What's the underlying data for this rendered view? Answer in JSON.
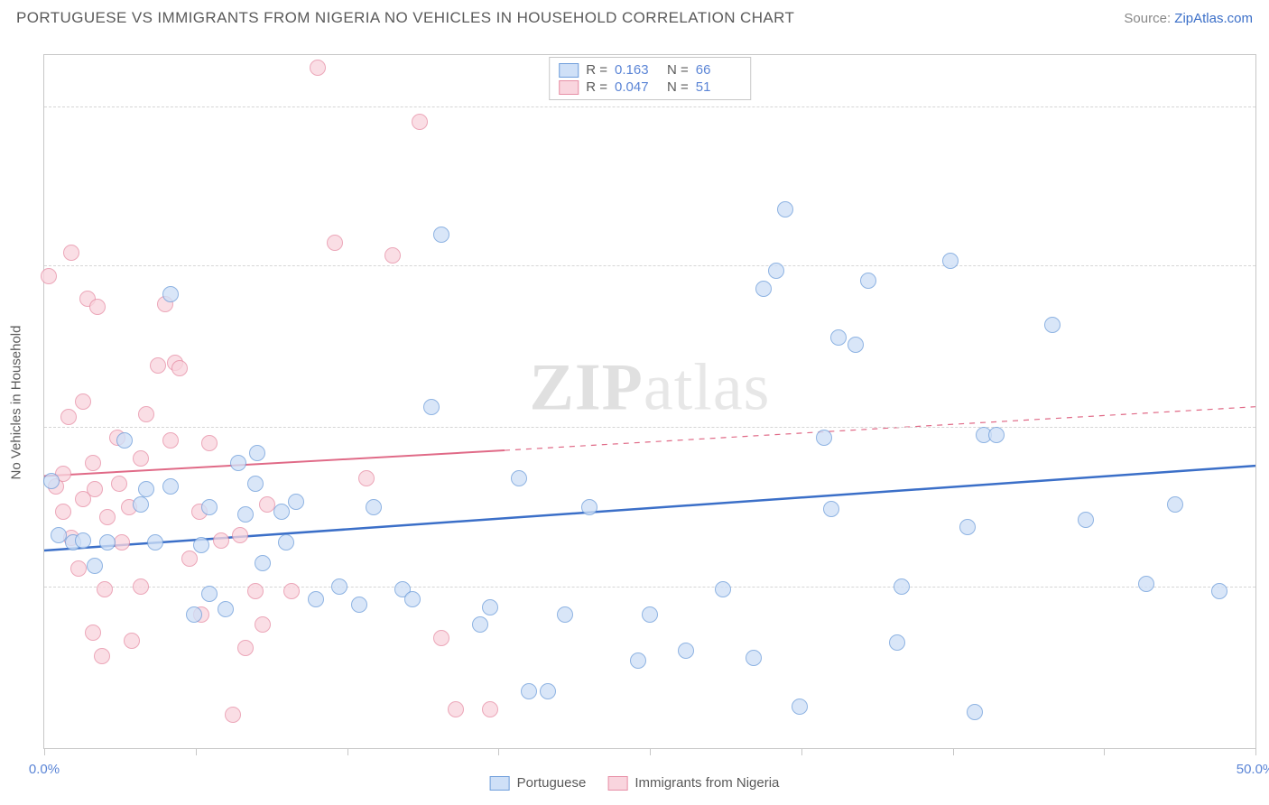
{
  "header": {
    "title": "PORTUGUESE VS IMMIGRANTS FROM NIGERIA NO VEHICLES IN HOUSEHOLD CORRELATION CHART",
    "source_prefix": "Source: ",
    "source_link": "ZipAtlas.com"
  },
  "chart": {
    "type": "scatter",
    "xlim": [
      0,
      50
    ],
    "ylim": [
      0,
      27
    ],
    "x_ticks": [
      0,
      6.25,
      12.5,
      18.75,
      25,
      31.25,
      37.5,
      43.75,
      50
    ],
    "x_tick_labels": {
      "0": "0.0%",
      "50": "50.0%"
    },
    "y_ticks": [
      6.3,
      12.5,
      18.8,
      25.0
    ],
    "y_tick_format": "%",
    "y_axis_label": "No Vehicles in Household",
    "grid_color": "#d6d6d6",
    "background_color": "#ffffff",
    "border_color": "#c7c7c7",
    "label_fontsize": 15,
    "label_color": "#5b85d6",
    "watermark_text_a": "ZIP",
    "watermark_text_b": "atlas"
  },
  "legend_top": {
    "rows": [
      {
        "color_fill": "#cfe0f7",
        "color_border": "#6f9edb",
        "r_label": "R =",
        "r_value": "0.163",
        "n_label": "N =",
        "n_value": "66"
      },
      {
        "color_fill": "#f9d5de",
        "color_border": "#e78fa6",
        "r_label": "R =",
        "r_value": "0.047",
        "n_label": "N =",
        "n_value": "51"
      }
    ]
  },
  "legend_bottom": {
    "items": [
      {
        "label": "Portuguese",
        "fill": "#cfe0f7",
        "border": "#6f9edb"
      },
      {
        "label": "Immigrants from Nigeria",
        "fill": "#f9d5de",
        "border": "#e78fa6"
      }
    ]
  },
  "series": {
    "portuguese": {
      "point_fill": "#cfe0f7",
      "point_border": "#6f9edb",
      "point_opacity": 0.78,
      "point_radius": 9,
      "trend": {
        "x1": 0,
        "y1": 7.7,
        "x2": 50,
        "y2": 11.0,
        "color": "#3b6fc8",
        "width": 2.5,
        "dash_after_x": 50
      },
      "points": [
        [
          0.3,
          10.4
        ],
        [
          0.6,
          8.3
        ],
        [
          1.2,
          8.0
        ],
        [
          1.6,
          8.1
        ],
        [
          2.1,
          7.1
        ],
        [
          2.6,
          8.0
        ],
        [
          3.3,
          12.0
        ],
        [
          4.0,
          9.5
        ],
        [
          4.2,
          10.1
        ],
        [
          4.6,
          8.0
        ],
        [
          5.2,
          10.2
        ],
        [
          5.2,
          17.7
        ],
        [
          6.2,
          5.2
        ],
        [
          6.5,
          7.9
        ],
        [
          6.8,
          9.4
        ],
        [
          6.8,
          6.0
        ],
        [
          7.5,
          5.4
        ],
        [
          8.0,
          11.1
        ],
        [
          8.3,
          9.1
        ],
        [
          8.7,
          10.3
        ],
        [
          8.8,
          11.5
        ],
        [
          9.0,
          7.2
        ],
        [
          9.8,
          9.2
        ],
        [
          10.0,
          8.0
        ],
        [
          10.4,
          9.6
        ],
        [
          11.2,
          5.8
        ],
        [
          12.2,
          6.3
        ],
        [
          13.0,
          5.6
        ],
        [
          13.6,
          9.4
        ],
        [
          14.8,
          6.2
        ],
        [
          15.2,
          5.8
        ],
        [
          16.0,
          13.3
        ],
        [
          16.4,
          20.0
        ],
        [
          18.0,
          4.8
        ],
        [
          18.4,
          5.5
        ],
        [
          19.6,
          10.5
        ],
        [
          20.0,
          2.2
        ],
        [
          20.8,
          2.2
        ],
        [
          21.5,
          5.2
        ],
        [
          22.5,
          9.4
        ],
        [
          24.5,
          3.4
        ],
        [
          25.0,
          5.2
        ],
        [
          26.5,
          3.8
        ],
        [
          28.0,
          6.2
        ],
        [
          29.3,
          3.5
        ],
        [
          29.7,
          17.9
        ],
        [
          30.2,
          18.6
        ],
        [
          30.6,
          21.0
        ],
        [
          31.2,
          1.6
        ],
        [
          32.2,
          12.1
        ],
        [
          32.8,
          16.0
        ],
        [
          32.5,
          9.3
        ],
        [
          33.5,
          15.7
        ],
        [
          34.0,
          18.2
        ],
        [
          35.2,
          4.1
        ],
        [
          35.4,
          6.3
        ],
        [
          37.4,
          19.0
        ],
        [
          38.1,
          8.6
        ],
        [
          38.4,
          1.4
        ],
        [
          38.8,
          12.2
        ],
        [
          39.3,
          12.2
        ],
        [
          41.6,
          16.5
        ],
        [
          43.0,
          8.9
        ],
        [
          45.5,
          6.4
        ],
        [
          46.7,
          9.5
        ],
        [
          48.5,
          6.1
        ]
      ]
    },
    "nigeria": {
      "point_fill": "#f9d5de",
      "point_border": "#e78fa6",
      "point_opacity": 0.78,
      "point_radius": 9,
      "trend": {
        "x1": 0,
        "y1": 10.6,
        "x2": 19,
        "y2": 11.6,
        "x3": 50,
        "y3": 13.3,
        "color": "#e06a87",
        "width": 2,
        "dash_after_x": 19
      },
      "points": [
        [
          0.2,
          18.4
        ],
        [
          0.5,
          10.2
        ],
        [
          0.8,
          10.7
        ],
        [
          0.8,
          9.2
        ],
        [
          1.0,
          12.9
        ],
        [
          1.1,
          8.2
        ],
        [
          1.1,
          19.3
        ],
        [
          1.4,
          7.0
        ],
        [
          1.6,
          9.7
        ],
        [
          1.6,
          13.5
        ],
        [
          1.8,
          17.5
        ],
        [
          2.0,
          4.5
        ],
        [
          2.0,
          11.1
        ],
        [
          2.1,
          10.1
        ],
        [
          2.2,
          17.2
        ],
        [
          2.4,
          3.6
        ],
        [
          2.5,
          6.2
        ],
        [
          2.6,
          9.0
        ],
        [
          3.0,
          12.1
        ],
        [
          3.1,
          10.3
        ],
        [
          3.2,
          8.0
        ],
        [
          3.5,
          9.4
        ],
        [
          3.6,
          4.2
        ],
        [
          4.0,
          11.3
        ],
        [
          4.0,
          6.3
        ],
        [
          4.2,
          13.0
        ],
        [
          4.7,
          14.9
        ],
        [
          5.0,
          17.3
        ],
        [
          5.2,
          12.0
        ],
        [
          5.4,
          15.0
        ],
        [
          5.6,
          14.8
        ],
        [
          6.0,
          7.4
        ],
        [
          6.4,
          9.2
        ],
        [
          6.5,
          5.2
        ],
        [
          6.8,
          11.9
        ],
        [
          7.3,
          8.1
        ],
        [
          7.8,
          1.3
        ],
        [
          8.1,
          8.3
        ],
        [
          8.3,
          3.9
        ],
        [
          8.7,
          6.1
        ],
        [
          9.0,
          4.8
        ],
        [
          9.2,
          9.5
        ],
        [
          10.2,
          6.1
        ],
        [
          11.3,
          26.5
        ],
        [
          12.0,
          19.7
        ],
        [
          13.3,
          10.5
        ],
        [
          14.4,
          19.2
        ],
        [
          15.5,
          24.4
        ],
        [
          16.4,
          4.3
        ],
        [
          17.0,
          1.5
        ],
        [
          18.4,
          1.5
        ]
      ]
    }
  }
}
